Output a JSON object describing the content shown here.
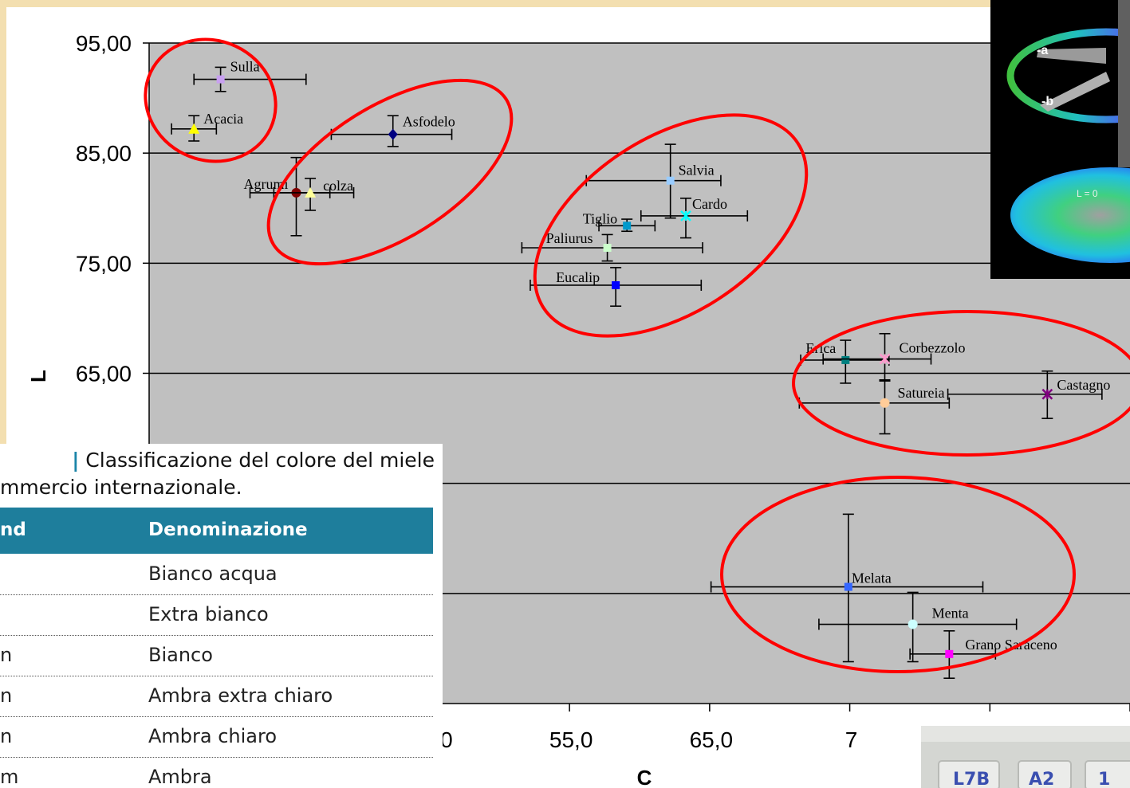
{
  "chart_data": {
    "type": "scatter",
    "xlabel": "C",
    "ylabel": "L",
    "ylim": [
      35,
      95
    ],
    "xlim": [
      25,
      95
    ],
    "yticks": [
      "95,00",
      "85,00",
      "75,00",
      "65,00"
    ],
    "xticks": [
      "45,0",
      "55,0",
      "65,0",
      "7"
    ],
    "grid": true,
    "points": [
      {
        "name": "Sulla",
        "x": 30.1,
        "y": 91.7,
        "xerr": [
          28.2,
          36.2
        ],
        "yerr": [
          90.6,
          92.8
        ],
        "color": "#c8a0f0",
        "marker": "square"
      },
      {
        "name": "Acacia",
        "x": 28.2,
        "y": 87.2,
        "xerr": [
          26.6,
          29.8
        ],
        "yerr": [
          86.1,
          88.4
        ],
        "color": "#ffff00",
        "marker": "triangle"
      },
      {
        "name": "Asfodelo",
        "x": 42.4,
        "y": 86.7,
        "xerr": [
          38.0,
          46.6
        ],
        "yerr": [
          85.6,
          88.4
        ],
        "color": "#000080",
        "marker": "diamond"
      },
      {
        "name": "Agrumi",
        "x": 35.5,
        "y": 81.4,
        "xerr": [
          32.2,
          37.9
        ],
        "yerr": [
          77.5,
          84.6
        ],
        "color": "#800000",
        "marker": "circle"
      },
      {
        "name": "colza",
        "x": 36.5,
        "y": 81.4,
        "xerr": [
          33.9,
          39.6
        ],
        "yerr": [
          79.8,
          82.7
        ],
        "color": "#ffff99",
        "marker": "triangle"
      },
      {
        "name": "Salvia",
        "x": 62.2,
        "y": 82.5,
        "xerr": [
          56.2,
          65.8
        ],
        "yerr": [
          79.1,
          85.8
        ],
        "color": "#99ccff",
        "marker": "square"
      },
      {
        "name": "Cardo",
        "x": 63.3,
        "y": 79.3,
        "xerr": [
          60.1,
          67.7
        ],
        "yerr": [
          77.3,
          80.9
        ],
        "color": "#00ffff",
        "marker": "star"
      },
      {
        "name": "Tiglio",
        "x": 59.1,
        "y": 78.4,
        "xerr": [
          57.1,
          61.1
        ],
        "yerr": [
          77.9,
          79.0
        ],
        "color": "#0099cc",
        "marker": "square"
      },
      {
        "name": "Paliurus",
        "x": 57.7,
        "y": 76.4,
        "xerr": [
          51.6,
          64.5
        ],
        "yerr": [
          75.2,
          77.6
        ],
        "color": "#ccffcc",
        "marker": "square"
      },
      {
        "name": "Eucalip",
        "x": 58.3,
        "y": 73.0,
        "xerr": [
          52.2,
          64.4
        ],
        "yerr": [
          71.1,
          74.6
        ],
        "color": "#0000ff",
        "marker": "square"
      },
      {
        "name": "Erica",
        "x": 74.7,
        "y": 66.2,
        "xerr": [
          71.5,
          77.8
        ],
        "yerr": [
          64.1,
          68.0
        ],
        "color": "#008080",
        "marker": "square"
      },
      {
        "name": "Corbezzolo",
        "x": 77.5,
        "y": 66.3,
        "xerr": [
          73.1,
          80.8
        ],
        "yerr": [
          64.3,
          68.6
        ],
        "color": "#ff99cc",
        "marker": "star"
      },
      {
        "name": "Satureia",
        "x": 77.5,
        "y": 62.3,
        "xerr": [
          71.4,
          82.1
        ],
        "yerr": [
          59.5,
          64.4
        ],
        "color": "#ffcc99",
        "marker": "circle"
      },
      {
        "name": "Castagno",
        "x": 89.1,
        "y": 63.1,
        "xerr": [
          82.0,
          93.0
        ],
        "yerr": [
          60.9,
          65.2
        ],
        "color": "#800080",
        "marker": "star"
      },
      {
        "name": "Melata",
        "x": 74.9,
        "y": 45.6,
        "xerr": [
          65.1,
          84.5
        ],
        "yerr": [
          38.8,
          52.2
        ],
        "color": "#3366ff",
        "marker": "square"
      },
      {
        "name": "Menta",
        "x": 79.5,
        "y": 42.2,
        "xerr": [
          72.8,
          86.9
        ],
        "yerr": [
          38.8,
          45.1
        ],
        "color": "#ccffff",
        "marker": "circle"
      },
      {
        "name": "Grano Saraceno",
        "x": 82.1,
        "y": 39.5,
        "xerr": [
          79.3,
          85.4
        ],
        "yerr": [
          37.3,
          41.6
        ],
        "color": "#ff00ff",
        "marker": "square"
      }
    ]
  },
  "table_inset": {
    "title_line1": "Classificazione del colore del miele",
    "title_line2": "mmercio internazionale.",
    "col1_header": "nd",
    "col2_header": "Denominazione",
    "rows": [
      {
        "c1": "",
        "c2": "Bianco acqua"
      },
      {
        "c1": "",
        "c2": "Extra bianco"
      },
      {
        "c1": "n",
        "c2": "Bianco"
      },
      {
        "c1": "n",
        "c2": "Ambra extra chiaro"
      },
      {
        "c1": "n",
        "c2": "Ambra chiaro"
      },
      {
        "c1": "m",
        "c2": "Ambra"
      }
    ]
  },
  "photo_inset": {
    "label_a": "-a",
    "label_b": "-b",
    "label_l": "L = 0"
  },
  "bottom_photo": {
    "labels": [
      "L7B",
      "A2",
      "1"
    ]
  }
}
